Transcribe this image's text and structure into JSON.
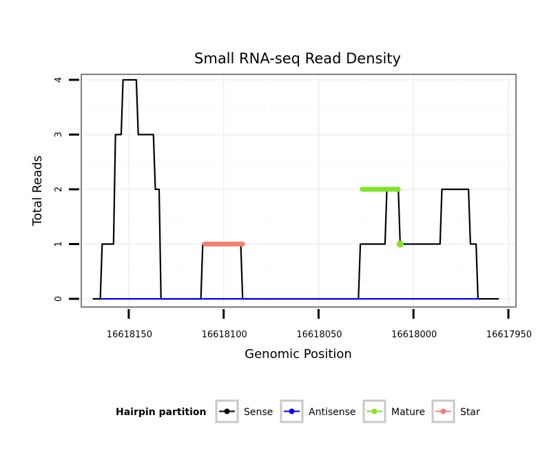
{
  "chart_data": {
    "type": "line",
    "title": "Small RNA-seq Read Density",
    "xlabel": "Genomic Position",
    "ylabel": "Total Reads",
    "x_reversed": true,
    "xlim": [
      16618175,
      16617946
    ],
    "ylim": [
      -0.15,
      4.1
    ],
    "x_ticks": [
      16618150,
      16618100,
      16618050,
      16618000,
      16617950
    ],
    "x_tick_labels": [
      "16618150",
      "16618100",
      "16618050",
      "16618000",
      "16617950"
    ],
    "y_ticks": [
      0,
      1,
      2,
      3,
      4
    ],
    "y_tick_labels": [
      "0",
      "1",
      "2",
      "3",
      "4"
    ],
    "grid": true,
    "legend": {
      "title": "Hairpin partition",
      "position": "bottom",
      "entries": [
        {
          "name": "Sense",
          "color": "#000000"
        },
        {
          "name": "Antisense",
          "color": "#0000ff"
        },
        {
          "name": "Mature",
          "color": "#7fe52a"
        },
        {
          "name": "Star",
          "color": "#f08070"
        }
      ]
    },
    "series": [
      {
        "name": "Sense",
        "color": "#000000",
        "x": [
          16618169,
          16618165,
          16618164,
          16618158,
          16618157,
          16618154,
          16618153,
          16618146,
          16618145,
          16618137,
          16618136,
          16618134,
          16618133,
          16618112,
          16618111,
          16618091,
          16618090,
          16618070,
          16618069,
          16618068,
          16618067,
          16618065,
          16618064,
          16618054,
          16618053,
          16618050,
          16618049,
          16618029,
          16618028,
          16618015,
          16618014,
          16618008,
          16618007,
          16617986,
          16617985,
          16617971,
          16617970,
          16617967,
          16617966,
          16617955
        ],
        "y": [
          0,
          0,
          1,
          1,
          3,
          3,
          4,
          4,
          3,
          3,
          2,
          2,
          0,
          0,
          1,
          1,
          0,
          0,
          0,
          0,
          0,
          0,
          0,
          0,
          0,
          0,
          0,
          0,
          1,
          1,
          2,
          2,
          1,
          1,
          2,
          2,
          1,
          1,
          0,
          0
        ]
      },
      {
        "name": "Antisense",
        "color": "#0000ff",
        "x": [
          16618165,
          16617966
        ],
        "y": [
          0,
          0
        ]
      },
      {
        "name": "Mature",
        "color": "#7fe52a",
        "x": [
          16618027,
          16618008
        ],
        "y": [
          2,
          2
        ],
        "tail_point": {
          "x": 16618007,
          "y": 1
        }
      },
      {
        "name": "Star",
        "color": "#f08070",
        "x": [
          16618110,
          16618090
        ],
        "y": [
          1,
          1
        ]
      }
    ]
  }
}
